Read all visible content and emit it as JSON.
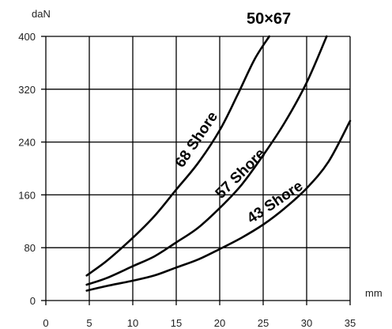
{
  "chart_data": {
    "type": "line",
    "title": "50×67",
    "xlabel": "mm",
    "ylabel": "daN",
    "xlim": [
      0,
      35
    ],
    "ylim": [
      0,
      400
    ],
    "x_ticks": [
      0,
      5,
      10,
      15,
      20,
      25,
      30,
      35
    ],
    "y_ticks": [
      0,
      80,
      160,
      240,
      320,
      400
    ],
    "grid": true,
    "series": [
      {
        "name": "68 Shore",
        "x": [
          4.7,
          7,
          10,
          12.5,
          15,
          17.5,
          20,
          22,
          24,
          25.7
        ],
        "y": [
          38,
          60,
          95,
          128,
          168,
          208,
          258,
          310,
          365,
          400
        ]
      },
      {
        "name": "57 Shore",
        "x": [
          4.7,
          7,
          10,
          12.5,
          15,
          17.5,
          20,
          22.5,
          25,
          27.5,
          30,
          32.3
        ],
        "y": [
          24,
          34,
          52,
          67,
          88,
          110,
          140,
          175,
          220,
          270,
          330,
          400
        ]
      },
      {
        "name": "43 Shore",
        "x": [
          4.7,
          7,
          10,
          12.5,
          15,
          17.5,
          20,
          22.5,
          25,
          27.5,
          30,
          32.5,
          35
        ],
        "y": [
          15,
          22,
          30,
          38,
          50,
          62,
          78,
          95,
          115,
          140,
          170,
          210,
          272
        ]
      }
    ]
  }
}
